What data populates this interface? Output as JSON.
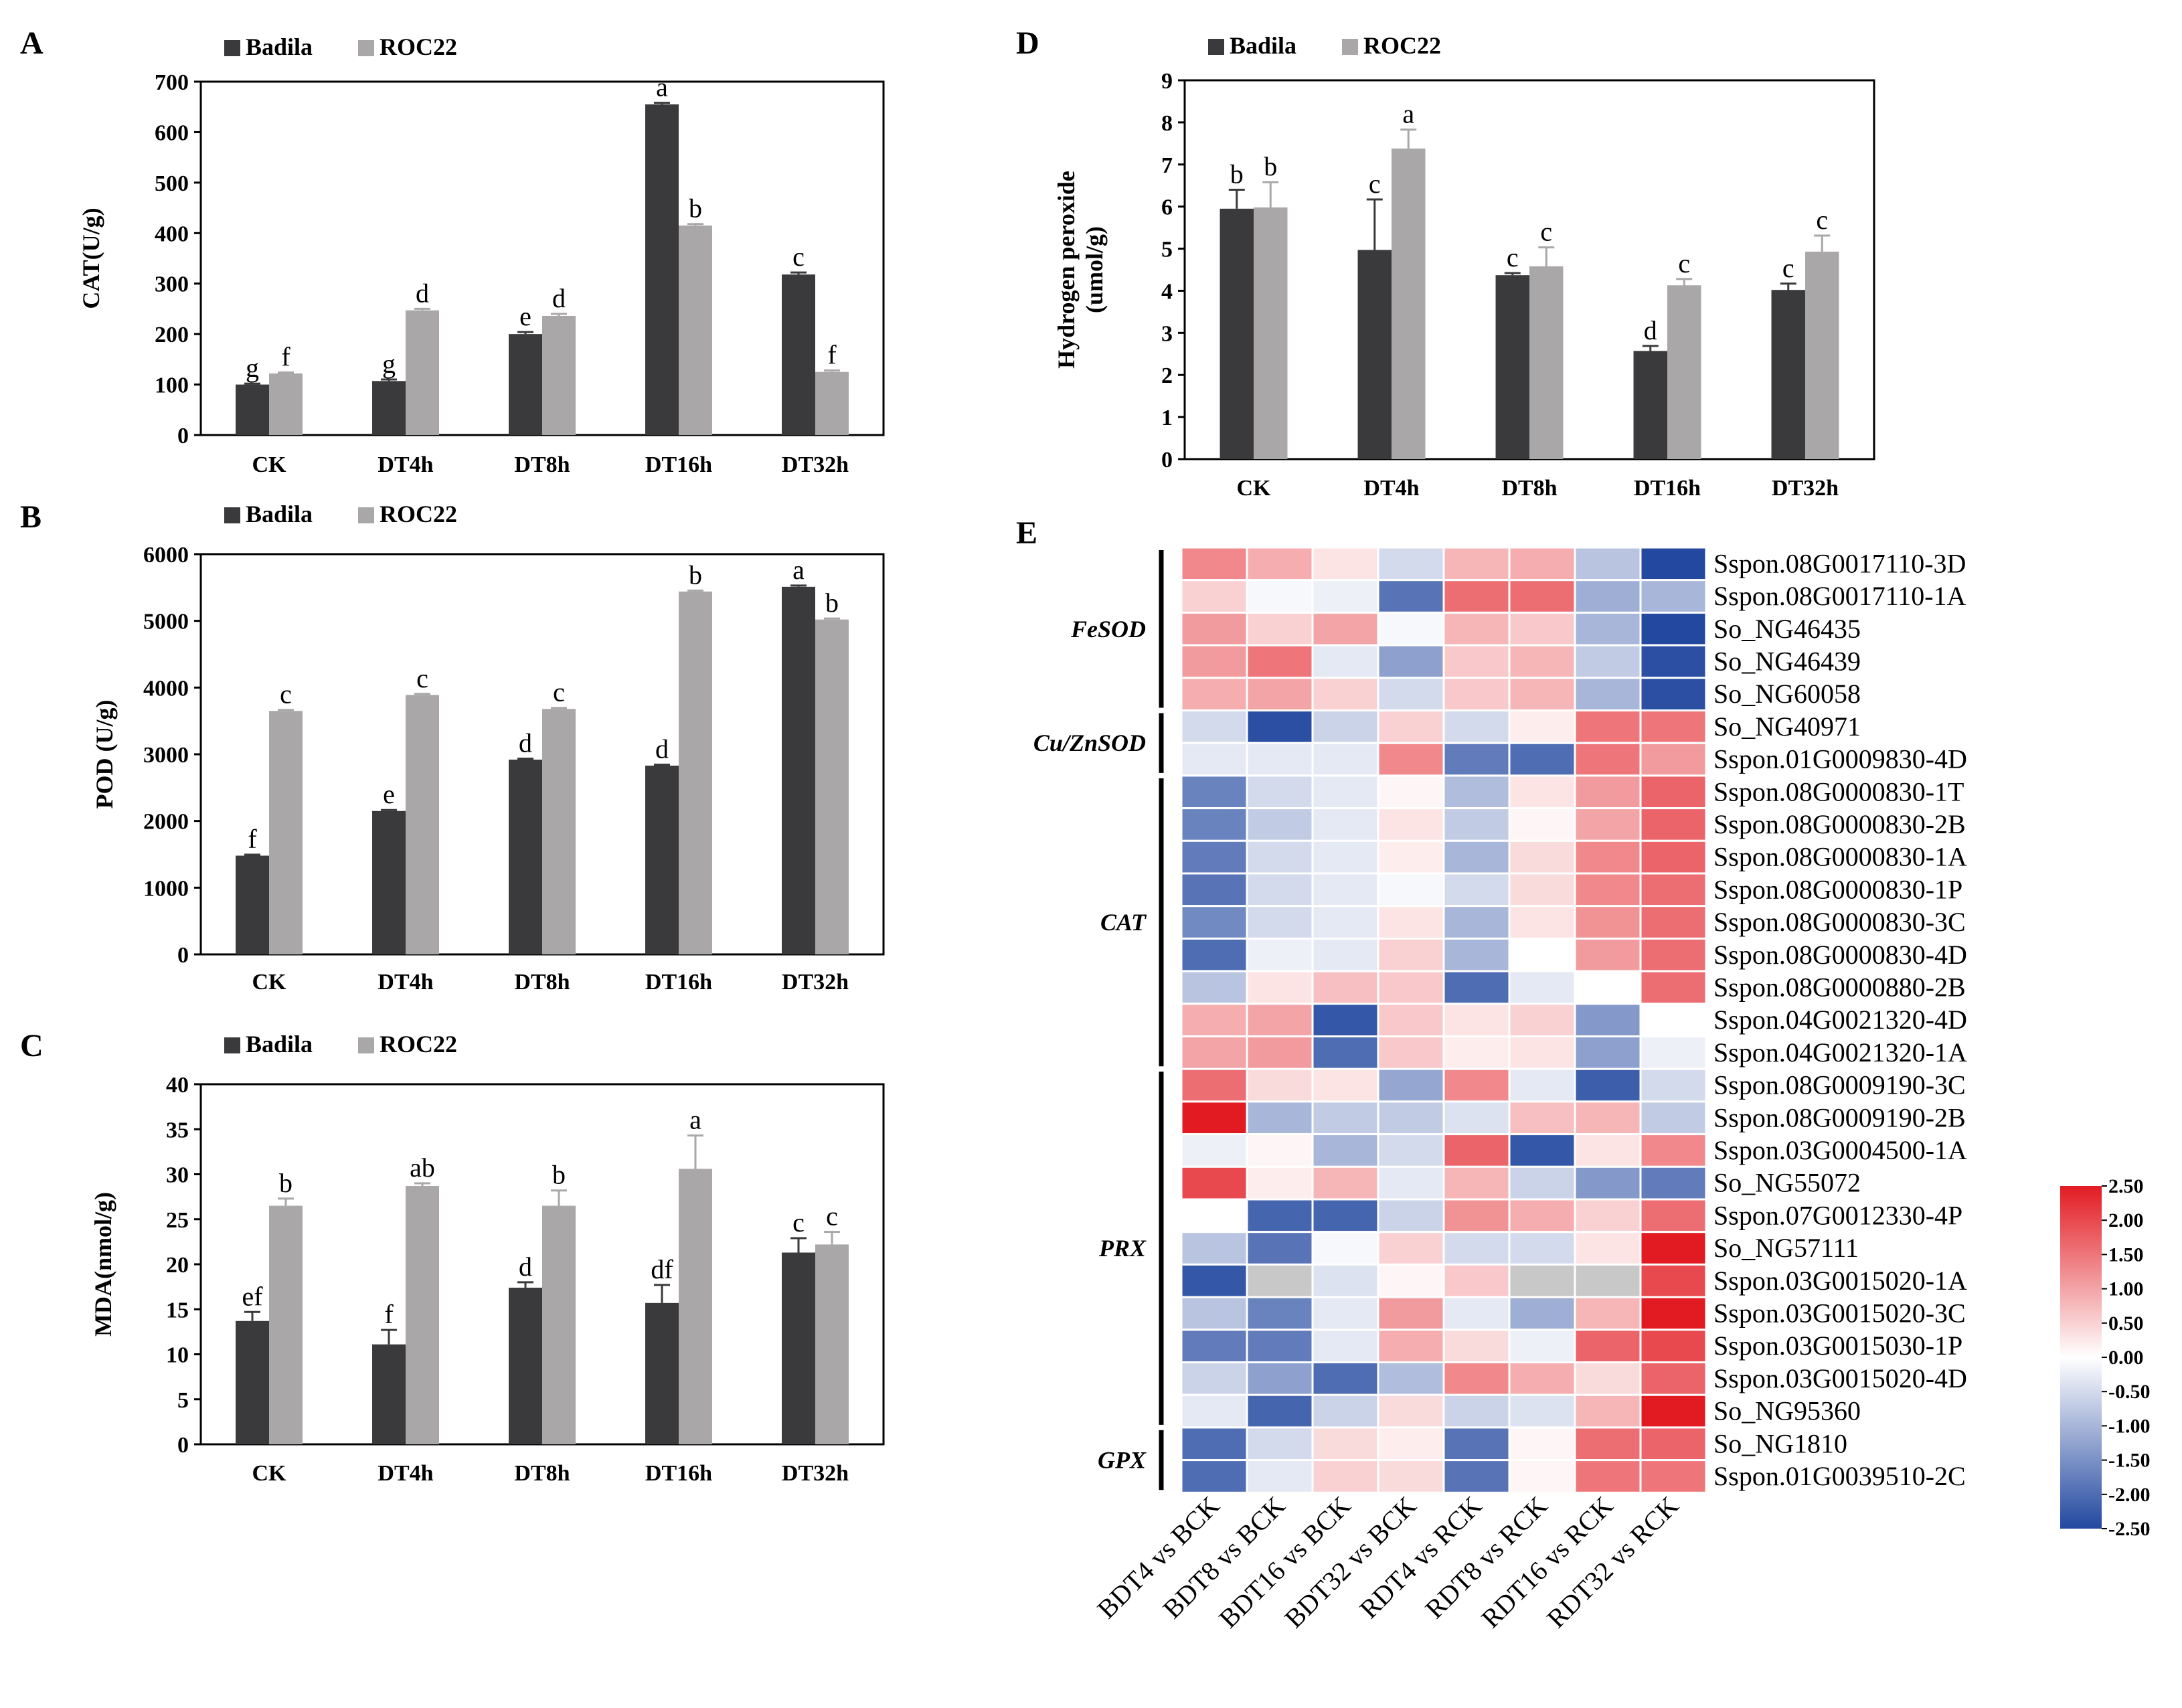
{
  "colors": {
    "badila": "#3a3a3c",
    "roc22": "#a9a7a8",
    "low": "#2348a0",
    "mid": "#ffffff",
    "high": "#e21b22",
    "na": "#c8c8c8"
  },
  "chart_data": [
    {
      "id": "A",
      "letter": "A",
      "type": "bar",
      "ylabel": "CAT(U/g)",
      "ylim": [
        0,
        700
      ],
      "yticks": [
        0,
        100,
        200,
        300,
        400,
        500,
        600,
        700
      ],
      "categories": [
        "CK",
        "DT4h",
        "DT8h",
        "DT16h",
        "DT32h"
      ],
      "legend": [
        "Badila",
        "ROC22"
      ],
      "series": [
        {
          "name": "Badila",
          "values": [
            100,
            107,
            200,
            655,
            318
          ],
          "errors": [
            2,
            3,
            4,
            3,
            4
          ],
          "labels": [
            "g",
            "g",
            "e",
            "a",
            "c"
          ]
        },
        {
          "name": "ROC22",
          "values": [
            122,
            247,
            236,
            415,
            125
          ],
          "errors": [
            2,
            3,
            4,
            3,
            3
          ],
          "labels": [
            "f",
            "d",
            "d",
            "b",
            "f"
          ]
        }
      ]
    },
    {
      "id": "B",
      "letter": "B",
      "type": "bar",
      "ylabel": "POD (U/g)",
      "ylim": [
        0,
        6000
      ],
      "yticks": [
        0,
        1000,
        2000,
        3000,
        4000,
        5000,
        6000
      ],
      "categories": [
        "CK",
        "DT4h",
        "DT8h",
        "DT16h",
        "DT32h"
      ],
      "legend": [
        "Badila",
        "ROC22"
      ],
      "series": [
        {
          "name": "Badila",
          "values": [
            1480,
            2150,
            2920,
            2830,
            5510
          ],
          "errors": [
            15,
            15,
            15,
            15,
            20
          ],
          "labels": [
            "f",
            "e",
            "d",
            "d",
            "a"
          ]
        },
        {
          "name": "ROC22",
          "values": [
            3650,
            3890,
            3680,
            5440,
            5020
          ],
          "errors": [
            15,
            15,
            15,
            15,
            15
          ],
          "labels": [
            "c",
            "c",
            "c",
            "b",
            "b"
          ]
        }
      ]
    },
    {
      "id": "C",
      "letter": "C",
      "type": "bar",
      "ylabel": "MDA(nmol/g)",
      "ylim": [
        0,
        40
      ],
      "yticks": [
        0,
        5,
        10,
        15,
        20,
        25,
        30,
        35,
        40
      ],
      "categories": [
        "CK",
        "DT4h",
        "DT8h",
        "DT16h",
        "DT32h"
      ],
      "legend": [
        "Badila",
        "ROC22"
      ],
      "series": [
        {
          "name": "Badila",
          "values": [
            13.7,
            11.1,
            17.4,
            15.7,
            21.3
          ],
          "errors": [
            1.0,
            1.6,
            0.6,
            2.0,
            1.6
          ],
          "labels": [
            "ef",
            "f",
            "d",
            "df",
            "c"
          ]
        },
        {
          "name": "ROC22",
          "values": [
            26.5,
            28.7,
            26.5,
            30.6,
            22.2
          ],
          "errors": [
            0.8,
            0.3,
            1.7,
            3.7,
            1.4
          ],
          "labels": [
            "b",
            "ab",
            "b",
            "a",
            "c"
          ]
        }
      ]
    },
    {
      "id": "D",
      "letter": "D",
      "type": "bar",
      "ylabel": [
        "Hydrogen peroxide",
        "(umol/g)"
      ],
      "ylim": [
        0,
        9
      ],
      "yticks": [
        0,
        1,
        2,
        3,
        4,
        5,
        6,
        7,
        8,
        9
      ],
      "categories": [
        "CK",
        "DT4h",
        "DT8h",
        "DT16h",
        "DT32h"
      ],
      "legend": [
        "Badila",
        "ROC22"
      ],
      "series": [
        {
          "name": "Badila",
          "values": [
            5.95,
            4.97,
            4.37,
            2.57,
            4.02
          ],
          "errors": [
            0.45,
            1.2,
            0.05,
            0.12,
            0.15
          ],
          "labels": [
            "b",
            "c",
            "c",
            "d",
            "c"
          ]
        },
        {
          "name": "ROC22",
          "values": [
            5.98,
            7.38,
            4.58,
            4.13,
            4.93
          ],
          "errors": [
            0.6,
            0.45,
            0.45,
            0.15,
            0.38
          ],
          "labels": [
            "b",
            "a",
            "c",
            "c",
            "c"
          ]
        }
      ]
    },
    {
      "id": "E",
      "letter": "E",
      "type": "heatmap",
      "columns": [
        "BDT4 vs BCK",
        "BDT8 vs BCK",
        "BDT16 vs BCK",
        "BDT32 vs BCK",
        "RDT4 vs RCK",
        "RDT8 vs RCK",
        "RDT16 vs RCK",
        "RDT32 vs RCK"
      ],
      "rows": [
        "Sspon.08G0017110-3D",
        "Sspon.08G0017110-1A",
        "So_NG46435",
        "So_NG46439",
        "So_NG60058",
        "So_NG40971",
        "Sspon.01G0009830-4D",
        "Sspon.08G0000830-1T",
        "Sspon.08G0000830-2B",
        "Sspon.08G0000830-1A",
        "Sspon.08G0000830-1P",
        "Sspon.08G0000830-3C",
        "Sspon.08G0000830-4D",
        "Sspon.08G0000880-2B",
        "Sspon.04G0021320-4D",
        "Sspon.04G0021320-1A",
        "Sspon.08G0009190-3C",
        "Sspon.08G0009190-2B",
        "Sspon.03G0004500-1A",
        "So_NG55072",
        "Sspon.07G0012330-4P",
        "So_NG57111",
        "Sspon.03G0015020-1A",
        "Sspon.03G0015020-3C",
        "Sspon.03G0015030-1P",
        "Sspon.03G0015020-4D",
        "So_NG95360",
        "So_NG1810",
        "Sspon.01G0039510-2C"
      ],
      "groups": [
        {
          "name": "FeSOD",
          "start": 0,
          "end": 4
        },
        {
          "name": "Cu/ZnSOD",
          "start": 5,
          "end": 6
        },
        {
          "name": "CAT",
          "start": 7,
          "end": 15
        },
        {
          "name": "PRX",
          "start": 16,
          "end": 26
        },
        {
          "name": "GPX",
          "start": 27,
          "end": 28
        }
      ],
      "values": [
        [
          1.3,
          0.9,
          0.3,
          -0.5,
          0.8,
          0.9,
          -0.8,
          -2.5
        ],
        [
          0.5,
          -0.1,
          -0.2,
          -1.9,
          1.6,
          1.6,
          -1.1,
          -1.0
        ],
        [
          1.1,
          0.5,
          1.0,
          -0.1,
          0.8,
          0.6,
          -1.0,
          -2.5
        ],
        [
          1.1,
          1.5,
          -0.3,
          -1.3,
          0.6,
          0.8,
          -0.7,
          -2.4
        ],
        [
          0.9,
          1.0,
          0.5,
          -0.5,
          0.6,
          0.8,
          -1.0,
          -2.4
        ],
        [
          -0.5,
          -2.4,
          -0.6,
          0.5,
          -0.5,
          0.2,
          1.5,
          1.5
        ],
        [
          -0.3,
          -0.3,
          -0.3,
          1.3,
          -1.8,
          -2.0,
          1.5,
          1.1
        ],
        [
          -1.7,
          -0.5,
          -0.3,
          0.1,
          -0.9,
          0.3,
          1.1,
          1.7
        ],
        [
          -1.7,
          -0.7,
          -0.3,
          0.3,
          -0.7,
          0.1,
          1.0,
          1.7
        ],
        [
          -1.8,
          -0.5,
          -0.3,
          0.2,
          -1.0,
          0.4,
          1.3,
          1.7
        ],
        [
          -1.9,
          -0.5,
          -0.3,
          -0.1,
          -0.5,
          0.4,
          1.3,
          1.6
        ],
        [
          -1.6,
          -0.5,
          -0.3,
          0.3,
          -1.0,
          0.3,
          1.2,
          1.6
        ],
        [
          -2.0,
          -0.2,
          -0.3,
          0.5,
          -1.0,
          0.0,
          1.1,
          1.6
        ],
        [
          -0.8,
          0.3,
          0.7,
          0.6,
          -2.0,
          -0.3,
          0.0,
          1.6
        ],
        [
          0.9,
          1.0,
          -2.3,
          0.6,
          0.3,
          0.5,
          -1.4,
          0.0
        ],
        [
          1.0,
          1.1,
          -2.0,
          0.6,
          0.2,
          0.3,
          -1.3,
          -0.2
        ],
        [
          1.6,
          0.4,
          0.3,
          -1.2,
          1.3,
          -0.3,
          -2.2,
          -0.5
        ],
        [
          2.5,
          -1.0,
          -0.7,
          -0.7,
          -0.4,
          0.7,
          0.8,
          -0.7
        ],
        [
          -0.2,
          0.1,
          -1.0,
          -0.5,
          1.7,
          -2.3,
          0.3,
          1.3
        ],
        [
          2.0,
          0.2,
          0.8,
          -0.3,
          0.8,
          -0.6,
          -1.4,
          -1.8
        ],
        [
          0.0,
          -2.1,
          -2.1,
          -0.6,
          1.2,
          0.9,
          0.5,
          1.6
        ],
        [
          -0.8,
          -1.9,
          -0.1,
          0.5,
          -0.5,
          -0.5,
          0.3,
          2.5
        ],
        [
          -2.3,
          null,
          -0.4,
          0.1,
          0.6,
          null,
          null,
          2.0
        ],
        [
          -0.8,
          -1.7,
          -0.3,
          1.1,
          -0.3,
          -1.1,
          0.8,
          2.5
        ],
        [
          -1.8,
          -1.8,
          -0.3,
          0.9,
          0.4,
          -0.2,
          1.7,
          2.0
        ],
        [
          -0.6,
          -1.3,
          -2.0,
          -0.9,
          1.3,
          0.9,
          0.4,
          1.7
        ],
        [
          -0.3,
          -2.1,
          -0.6,
          0.4,
          -0.6,
          -0.4,
          0.8,
          2.5
        ],
        [
          -2.0,
          -0.5,
          0.4,
          0.2,
          -1.9,
          0.1,
          1.6,
          1.7
        ],
        [
          -2.0,
          -0.3,
          0.5,
          0.4,
          -1.9,
          0.1,
          1.5,
          1.5
        ]
      ],
      "scale": {
        "min": -2.5,
        "max": 2.5,
        "ticks": [
          "2.50",
          "2.00",
          "1.50",
          "1.00",
          "0.50",
          "0.00",
          "-0.50",
          "-1.00",
          "-1.50",
          "-2.00",
          "-2.50"
        ]
      }
    }
  ]
}
